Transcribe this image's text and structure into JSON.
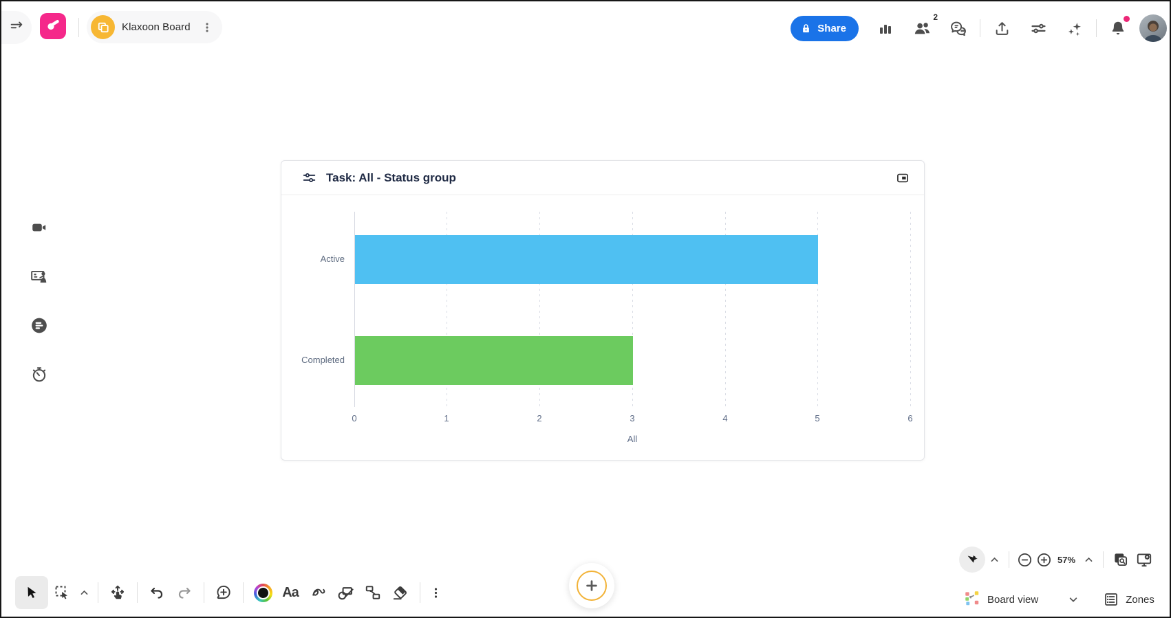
{
  "header": {
    "board_title": "Klaxoon Board",
    "share_label": "Share",
    "participants_badge": "2"
  },
  "chart_card": {
    "title": "Task: All - Status group"
  },
  "chart_data": {
    "type": "bar",
    "orientation": "horizontal",
    "title": "Task: All - Status group",
    "categories": [
      "Active",
      "Completed"
    ],
    "values": [
      5,
      3
    ],
    "bar_colors": [
      "#4FC0F2",
      "#6CCB5F"
    ],
    "xlabel": "All",
    "xticks": [
      "0",
      "1",
      "2",
      "3",
      "4",
      "5",
      "6"
    ],
    "xlim": [
      0,
      6
    ],
    "grid": "vertical-dashed",
    "legend": "none"
  },
  "toolbar": {
    "text_tool_label": "Aa"
  },
  "controls": {
    "zoom_level": "57%",
    "board_view_label": "Board view",
    "zones_label": "Zones"
  },
  "colors": {
    "accent_blue": "#1A73E8",
    "brand_pink": "#F5288A",
    "brand_yellow": "#F7B733",
    "bar_blue": "#4FC0F2",
    "bar_green": "#6CCB5F",
    "notification_dot": "#EC2777"
  }
}
